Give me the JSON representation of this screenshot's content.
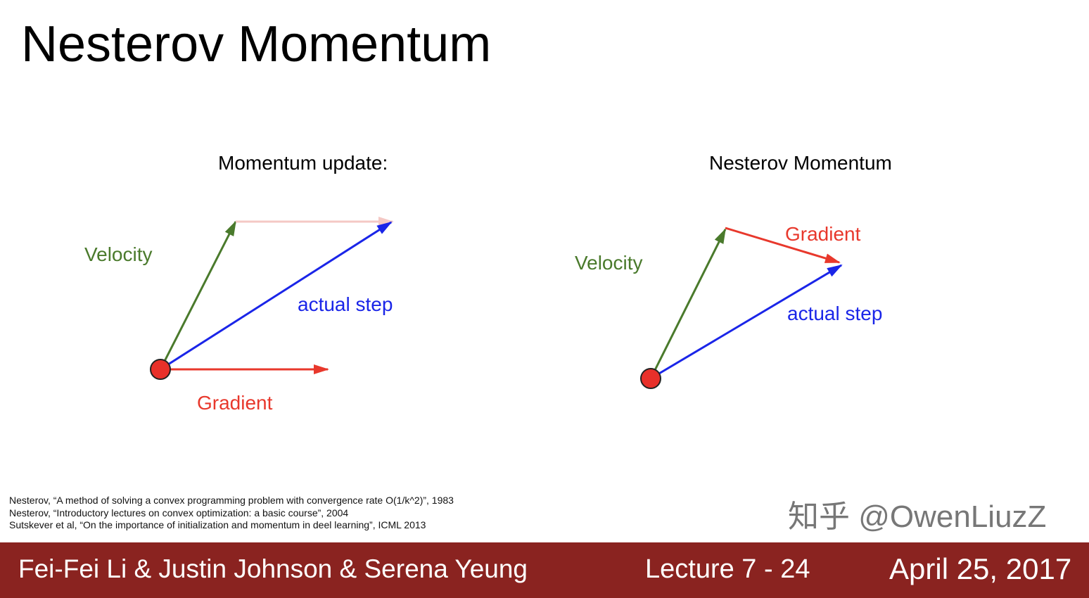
{
  "title": "Nesterov Momentum",
  "left_diagram": {
    "subtitle": "Momentum update:",
    "velocity_label": "Velocity",
    "step_label": "actual step",
    "gradient_label": "Gradient"
  },
  "right_diagram": {
    "subtitle": "Nesterov Momentum",
    "velocity_label": "Velocity",
    "gradient_label": "Gradient",
    "step_label": "actual step"
  },
  "colors": {
    "velocity": "#4a7a2c",
    "gradient": "#e8382c",
    "step": "#1a25e8",
    "footer": "#8a2320"
  },
  "references": [
    "Nesterov, “A method of solving a convex programming problem with convergence rate O(1/k^2)”, 1983",
    "Nesterov, “Introductory lectures on convex optimization: a basic course”, 2004",
    "Sutskever et al, “On the importance of initialization and momentum in deel learning”, ICML 2013"
  ],
  "footer": {
    "authors": "Fei-Fei Li & Justin Johnson & Serena Yeung",
    "lecture": "Lecture 7 - 24",
    "date": "April 25, 2017"
  },
  "watermark": "知乎 @OwenLiuzZ"
}
